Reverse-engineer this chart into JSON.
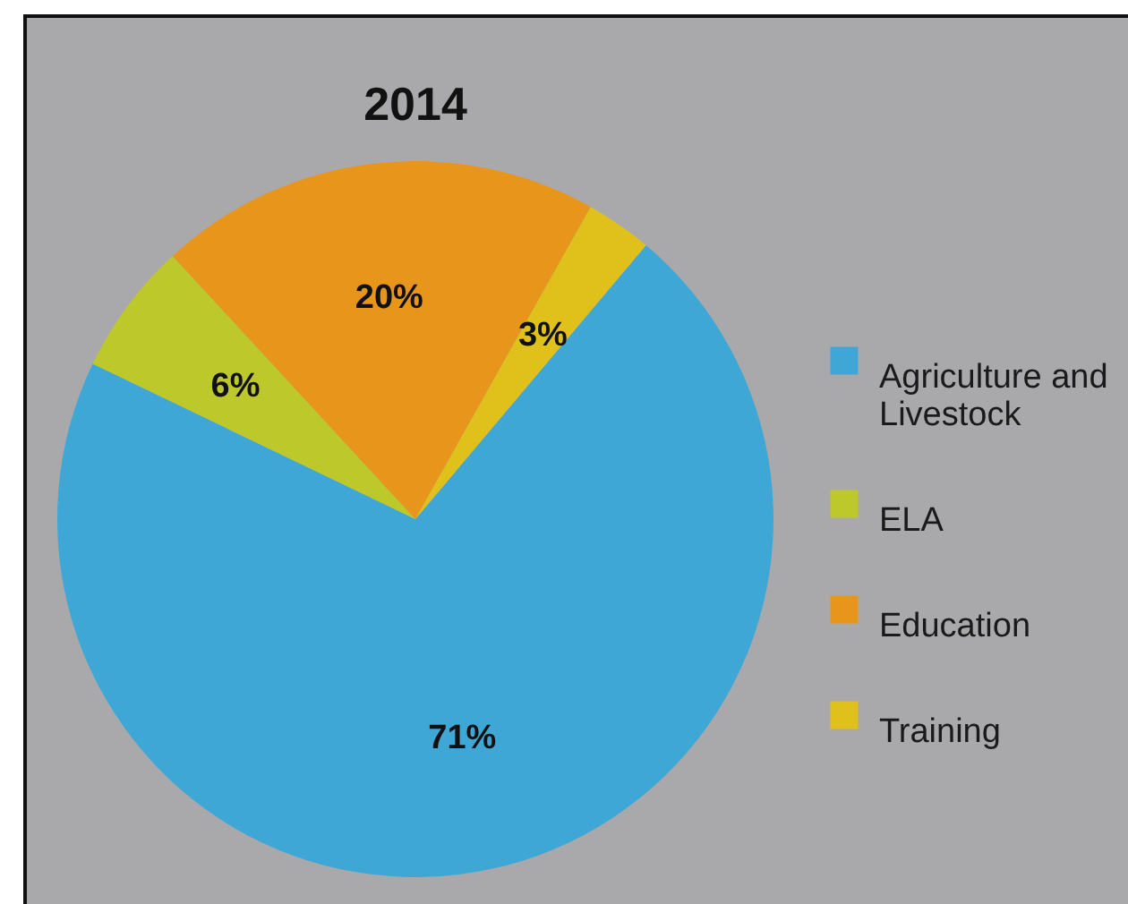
{
  "chart_data": {
    "type": "pie",
    "title": "2014",
    "categories": [
      "Agriculture and Livestock",
      "ELA",
      "Education",
      "Training"
    ],
    "values": [
      71,
      6,
      20,
      3
    ],
    "colors": [
      "#3fa7d6",
      "#bdc92b",
      "#e8961b",
      "#e0c11c"
    ],
    "value_labels": [
      "71%",
      "6%",
      "20%",
      "3%"
    ],
    "legend": "right"
  }
}
